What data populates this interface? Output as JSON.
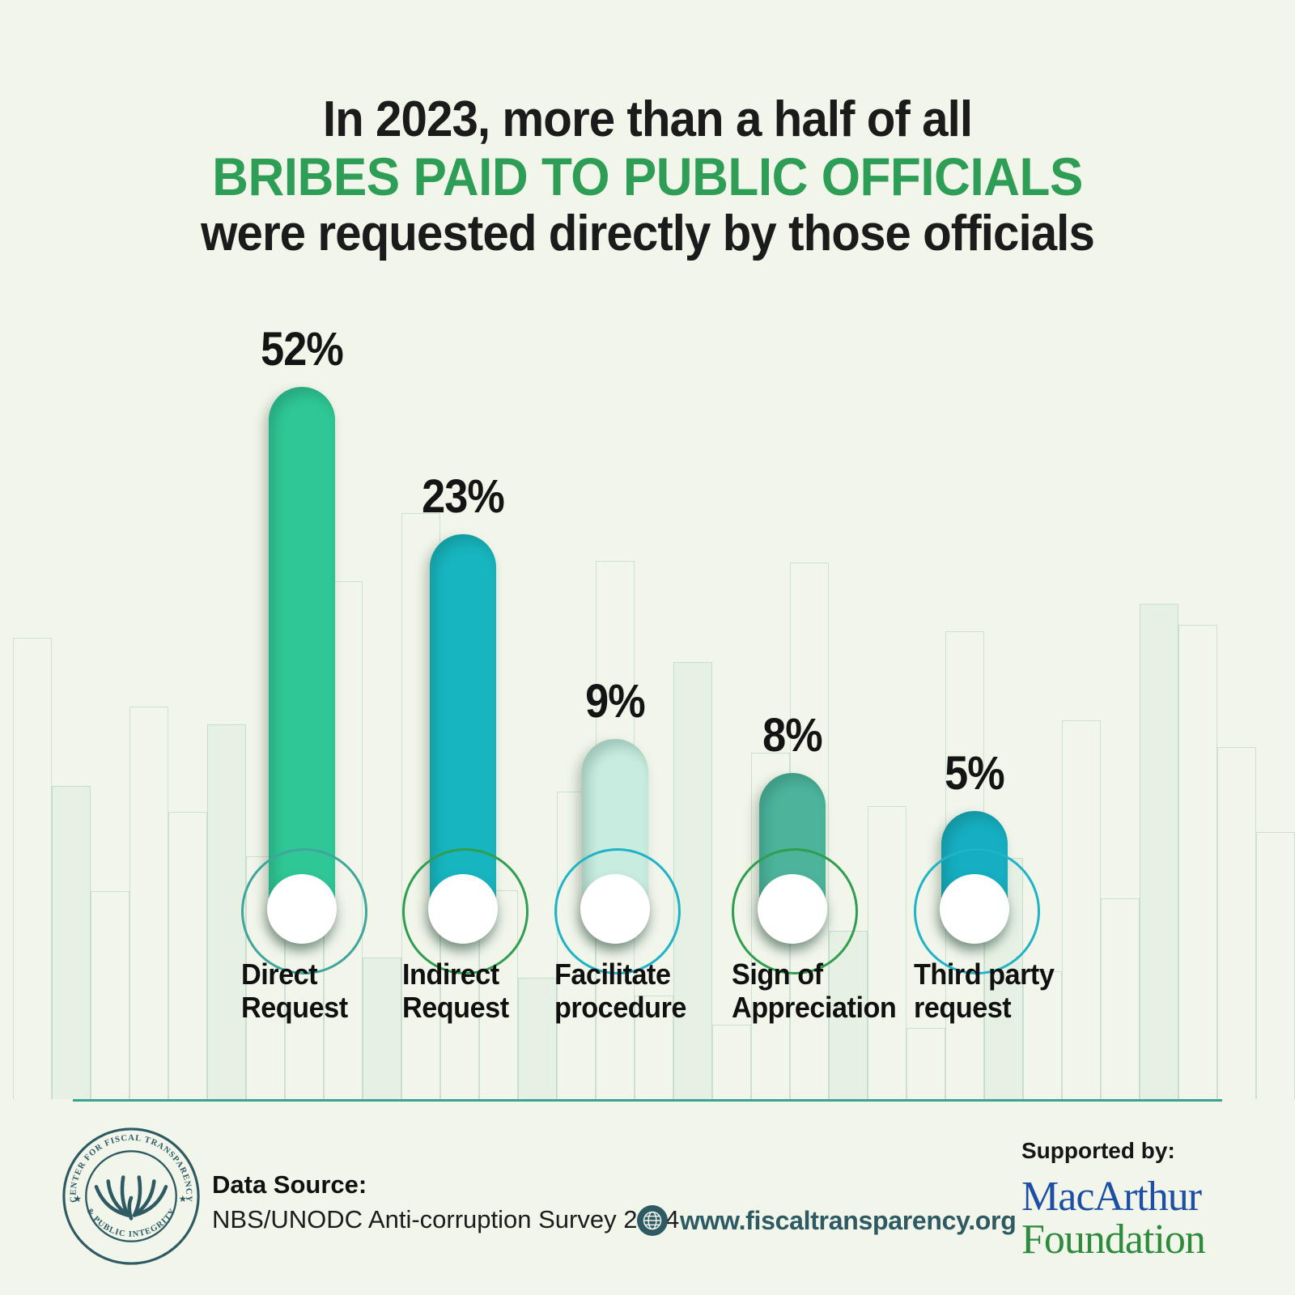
{
  "title": {
    "line1": "In 2023, more than a half of all",
    "line2": "BRIBES PAID TO PUBLIC OFFICIALS",
    "line3": "were requested directly by those officials",
    "highlight_color": "#2e9e57",
    "text_color": "#1b1b1b"
  },
  "chart_data": {
    "type": "bar",
    "title": "In 2023, more than a half of all bribes paid to public officials were requested directly by those officials",
    "unit": "%",
    "categories": [
      "Direct Request",
      "Indirect Request",
      "Facilitate procedure",
      "Sign of Appreciation",
      "Third party request"
    ],
    "values": [
      52,
      23,
      9,
      8,
      5
    ],
    "xlabel": "",
    "ylabel": "",
    "ylim": [
      0,
      60
    ],
    "grid": "off",
    "legend": "none",
    "bars": [
      {
        "value": 52,
        "value_label": "52%",
        "label_lines": [
          "Direct",
          "Request"
        ],
        "bar_color": "#2fc795",
        "ring_color": "#3fa69b"
      },
      {
        "value": 23,
        "value_label": "23%",
        "label_lines": [
          "Indirect",
          "Request"
        ],
        "bar_color": "#17b5c0",
        "ring_color": "#2f9e4e"
      },
      {
        "value": 9,
        "value_label": "9%",
        "label_lines": [
          "Facilitate",
          "procedure"
        ],
        "bar_color": "#c8ecdf",
        "ring_color": "#1fb3c8"
      },
      {
        "value": 8,
        "value_label": "8%",
        "label_lines": [
          "Sign of",
          "Appreciation"
        ],
        "bar_color": "#4db49c",
        "ring_color": "#2f9e4e"
      },
      {
        "value": 5,
        "value_label": "5%",
        "label_lines": [
          "Third party",
          "request"
        ],
        "bar_color": "#16aec2",
        "ring_color": "#1fb3c8"
      }
    ]
  },
  "footer": {
    "seal": {
      "top_text": "CENTER FOR FISCAL TRANSPARENCY",
      "bottom_text": "& PUBLIC INTEGRITY",
      "color": "#2d5a63"
    },
    "data_source_label": "Data Source:",
    "data_source_value": "NBS/UNODC Anti-corruption Survey 2024",
    "website": "www.fiscaltransparency.org",
    "supported_by": "Supported by:",
    "sponsor_line1": "MacArthur",
    "sponsor_line2": "Foundation",
    "sponsor_color1": "#1d4fa5",
    "sponsor_color2": "#2e8b3e",
    "accent_color": "#2d5a63"
  }
}
